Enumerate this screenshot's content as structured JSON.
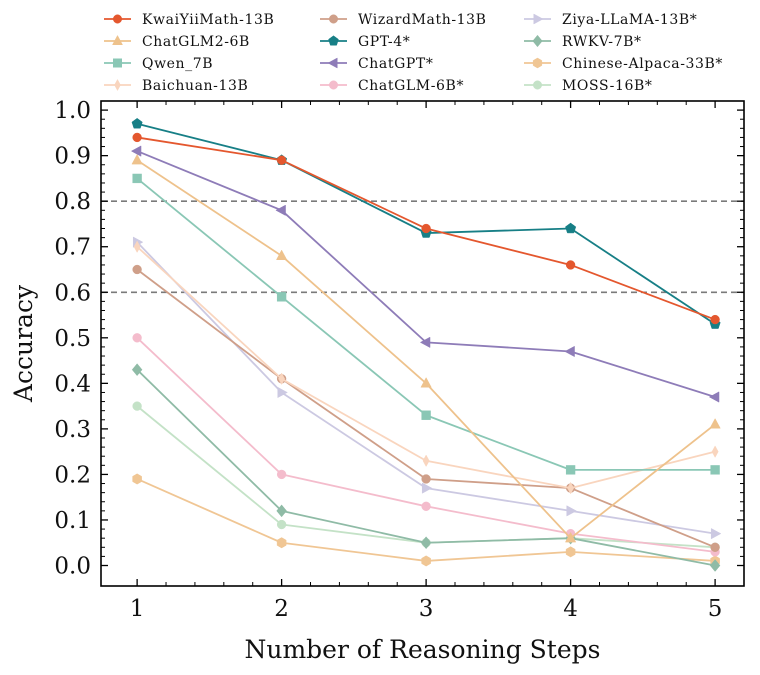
{
  "chart_data": {
    "type": "line",
    "title": "",
    "xlabel": "Number of Reasoning Steps",
    "ylabel": "Accuracy",
    "x": [
      1,
      2,
      3,
      4,
      5
    ],
    "x_ticks": [
      "1",
      "2",
      "3",
      "4",
      "5"
    ],
    "xlim": [
      0.75,
      5.2
    ],
    "ylim": [
      -0.045,
      1.02
    ],
    "y_ticks": [
      "0.0",
      "0.1",
      "0.2",
      "0.3",
      "0.4",
      "0.5",
      "0.6",
      "0.7",
      "0.8",
      "0.9",
      "1.0"
    ],
    "reference_lines": [
      0.6,
      0.8
    ],
    "legend_position": "top",
    "series": [
      {
        "name": "KwaiYiiMath-13B",
        "color": "#e4572e",
        "marker": "circle",
        "opacity": 1.0,
        "values": [
          0.94,
          0.89,
          0.74,
          0.66,
          0.54
        ]
      },
      {
        "name": "ChatGLM2-6B",
        "color": "#eec28c",
        "marker": "triangle-up",
        "opacity": 1.0,
        "values": [
          0.89,
          0.68,
          0.4,
          0.06,
          0.31
        ]
      },
      {
        "name": "Qwen_7B",
        "color": "#8ac7b5",
        "marker": "square",
        "opacity": 1.0,
        "values": [
          0.85,
          0.59,
          0.33,
          0.21,
          0.21
        ]
      },
      {
        "name": "Baichuan-13B",
        "color": "#f9d5be",
        "marker": "diamond-thin",
        "opacity": 1.0,
        "values": [
          0.7,
          0.41,
          0.23,
          0.17,
          0.25
        ]
      },
      {
        "name": "WizardMath-13B",
        "color": "#cf9f89",
        "marker": "circle",
        "opacity": 1.0,
        "values": [
          0.65,
          0.41,
          0.19,
          0.17,
          0.04
        ]
      },
      {
        "name": "GPT-4*",
        "color": "#177f86",
        "marker": "pentagon",
        "opacity": 1.0,
        "values": [
          0.97,
          0.89,
          0.73,
          0.74,
          0.53
        ]
      },
      {
        "name": "ChatGPT*",
        "color": "#8e7cb8",
        "marker": "triangle-left",
        "opacity": 1.0,
        "values": [
          0.91,
          0.78,
          0.49,
          0.47,
          0.37
        ]
      },
      {
        "name": "ChatGLM-6B*",
        "color": "#f4bccc",
        "marker": "circle",
        "opacity": 1.0,
        "values": [
          0.5,
          0.2,
          0.13,
          0.07,
          0.03
        ]
      },
      {
        "name": "Ziya-LLaMA-13B*",
        "color": "#ccc9e2",
        "marker": "triangle-right",
        "opacity": 1.0,
        "values": [
          0.71,
          0.38,
          0.17,
          0.12,
          0.07
        ]
      },
      {
        "name": "RWKV-7B*",
        "color": "#8fbba6",
        "marker": "diamond",
        "opacity": 1.0,
        "values": [
          0.43,
          0.12,
          0.05,
          0.06,
          0.0
        ]
      },
      {
        "name": "Chinese-Alpaca-33B*",
        "color": "#f0c694",
        "marker": "hexagon",
        "opacity": 1.0,
        "values": [
          0.19,
          0.05,
          0.01,
          0.03,
          0.01
        ]
      },
      {
        "name": "MOSS-16B*",
        "color": "#c4e2c7",
        "marker": "circle",
        "opacity": 1.0,
        "values": [
          0.35,
          0.09,
          0.05,
          0.06,
          0.04
        ]
      }
    ]
  }
}
